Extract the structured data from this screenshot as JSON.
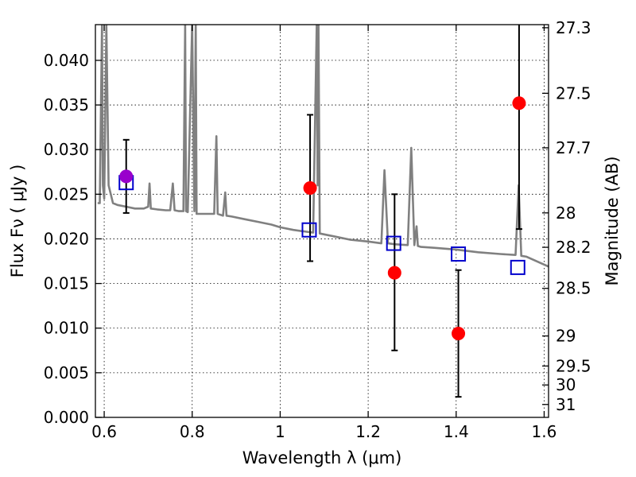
{
  "chart_data": {
    "type": "scatter",
    "title": "",
    "xlabel": "Wavelength  λ (μm)",
    "ylabel": "Flux  Fν  ( μJy )",
    "y2label": "Magnitude (AB)",
    "xlim": [
      0.58,
      1.61
    ],
    "ylim": [
      0.0,
      0.044
    ],
    "grid": true,
    "x_ticks": [
      0.6,
      0.8,
      1.0,
      1.2,
      1.4,
      1.6
    ],
    "x_tick_labels": [
      "0.6",
      "0.8",
      "1",
      "1.2",
      "1.4",
      "1.6"
    ],
    "y_ticks": [
      0.0,
      0.005,
      0.01,
      0.015,
      0.02,
      0.025,
      0.03,
      0.035,
      0.04
    ],
    "y_tick_labels": [
      "0.000",
      "0.005",
      "0.010",
      "0.015",
      "0.020",
      "0.025",
      "0.030",
      "0.035",
      "0.040"
    ],
    "y2_ticks": [
      27.3,
      27.5,
      27.7,
      28.0,
      28.2,
      28.5,
      29.0,
      29.5,
      30.0,
      31.0
    ],
    "y2_tick_labels": [
      "27.3",
      "27.5",
      "27.7",
      "28",
      "28.2",
      "28.5",
      "29",
      "29.5",
      "30",
      "31"
    ],
    "series": [
      {
        "role": "template-spectrum",
        "kind": "line",
        "color": "#808080",
        "x": [
          0.585,
          0.59,
          0.595,
          0.597,
          0.6,
          0.605,
          0.61,
          0.62,
          0.63,
          0.65,
          0.67,
          0.69,
          0.7,
          0.703,
          0.706,
          0.72,
          0.74,
          0.75,
          0.756,
          0.76,
          0.77,
          0.78,
          0.784,
          0.786,
          0.79,
          0.8,
          0.805,
          0.808,
          0.81,
          0.83,
          0.85,
          0.855,
          0.858,
          0.87,
          0.875,
          0.878,
          0.89,
          0.92,
          0.95,
          0.98,
          1.0,
          1.03,
          1.06,
          1.075,
          1.083,
          1.085,
          1.087,
          1.09,
          1.1,
          1.13,
          1.16,
          1.2,
          1.23,
          1.237,
          1.245,
          1.26,
          1.29,
          1.298,
          1.305,
          1.31,
          1.313,
          1.32,
          1.35,
          1.4,
          1.45,
          1.5,
          1.535,
          1.542,
          1.548,
          1.56,
          1.61
        ],
        "y": [
          0.024,
          0.024,
          0.044,
          0.026,
          0.0245,
          0.044,
          0.026,
          0.024,
          0.0238,
          0.0236,
          0.0234,
          0.0234,
          0.0236,
          0.0262,
          0.0234,
          0.0233,
          0.0232,
          0.0232,
          0.0262,
          0.0232,
          0.0231,
          0.0231,
          0.044,
          0.0231,
          0.023,
          0.044,
          0.0231,
          0.044,
          0.0228,
          0.0228,
          0.0228,
          0.0315,
          0.0228,
          0.0226,
          0.0252,
          0.0226,
          0.0225,
          0.0222,
          0.0219,
          0.0216,
          0.0213,
          0.021,
          0.0208,
          0.0207,
          0.044,
          0.026,
          0.044,
          0.0206,
          0.0205,
          0.0202,
          0.0199,
          0.0197,
          0.0195,
          0.0277,
          0.0195,
          0.0194,
          0.0193,
          0.0302,
          0.0193,
          0.0214,
          0.0192,
          0.0191,
          0.019,
          0.0188,
          0.0185,
          0.0183,
          0.0182,
          0.026,
          0.0181,
          0.018,
          0.0169
        ]
      },
      {
        "role": "model-points",
        "kind": "open-square",
        "color": "#0000cc",
        "x": [
          0.65,
          1.066,
          1.258,
          1.405,
          1.54
        ],
        "y": [
          0.0263,
          0.021,
          0.0195,
          0.0183,
          0.0168
        ]
      },
      {
        "role": "observed-points",
        "kind": "filled-circle",
        "color": "#ff0000",
        "x": [
          0.65,
          1.068,
          1.26,
          1.405,
          1.543
        ],
        "y": [
          0.027,
          0.0257,
          0.0162,
          0.0094,
          0.0352
        ],
        "yerr_low": [
          0.0041,
          0.0082,
          0.0087,
          0.0071,
          0.0141
        ],
        "yerr_high": [
          0.0041,
          0.0082,
          0.0088,
          0.0071,
          0.0088
        ]
      }
    ],
    "first_point_color": "#9900cc"
  }
}
